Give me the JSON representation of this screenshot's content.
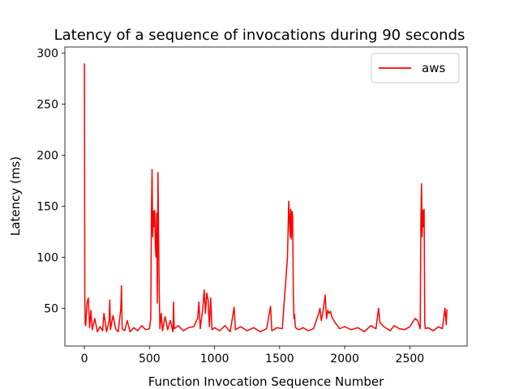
{
  "chart_data": {
    "type": "line",
    "title": "Latency of a sequence of invocations during 90 seconds",
    "xlabel": "Function Invocation Sequence Number",
    "ylabel": "Latency (ms)",
    "xlim": [
      -150,
      2940
    ],
    "ylim": [
      13,
      306
    ],
    "xticks": [
      0,
      500,
      1000,
      1500,
      2000,
      2500
    ],
    "yticks": [
      50,
      100,
      150,
      200,
      250,
      300
    ],
    "grid": false,
    "legend_position": "top-right",
    "color": "#ff0000",
    "series": [
      {
        "name": "aws",
        "x": [
          0,
          3,
          6,
          10,
          20,
          30,
          40,
          50,
          60,
          80,
          100,
          120,
          140,
          150,
          170,
          190,
          195,
          200,
          220,
          240,
          260,
          280,
          285,
          290,
          310,
          330,
          350,
          380,
          410,
          440,
          470,
          500,
          510,
          515,
          520,
          525,
          530,
          535,
          540,
          545,
          550,
          555,
          560,
          565,
          570,
          575,
          580,
          590,
          600,
          620,
          640,
          660,
          680,
          685,
          690,
          720,
          760,
          800,
          840,
          870,
          880,
          890,
          910,
          920,
          930,
          940,
          950,
          960,
          970,
          980,
          1000,
          1040,
          1080,
          1120,
          1150,
          1160,
          1200,
          1250,
          1300,
          1350,
          1400,
          1430,
          1440,
          1480,
          1520,
          1560,
          1570,
          1580,
          1585,
          1590,
          1595,
          1600,
          1605,
          1610,
          1615,
          1620,
          1630,
          1650,
          1680,
          1720,
          1760,
          1800,
          1810,
          1820,
          1835,
          1850,
          1860,
          1870,
          1880,
          1890,
          1900,
          1920,
          1960,
          2000,
          2050,
          2100,
          2150,
          2200,
          2240,
          2260,
          2270,
          2300,
          2350,
          2380,
          2420,
          2460,
          2500,
          2540,
          2560,
          2580,
          2585,
          2590,
          2595,
          2600,
          2605,
          2610,
          2615,
          2620,
          2640,
          2680,
          2720,
          2750,
          2770,
          2780,
          2785
        ],
        "y": [
          290,
          60,
          35,
          33,
          55,
          60,
          31,
          48,
          29,
          40,
          27,
          32,
          28,
          45,
          27,
          38,
          58,
          29,
          43,
          30,
          27,
          50,
          72,
          30,
          28,
          38,
          27,
          31,
          28,
          33,
          29,
          30,
          40,
          138,
          186,
          120,
          145,
          130,
          146,
          110,
          100,
          143,
          55,
          183,
          120,
          65,
          30,
          45,
          28,
          42,
          29,
          38,
          27,
          56,
          30,
          33,
          28,
          31,
          32,
          40,
          56,
          30,
          50,
          68,
          45,
          65,
          58,
          32,
          60,
          29,
          31,
          28,
          33,
          27,
          51,
          29,
          32,
          28,
          31,
          27,
          30,
          52,
          28,
          31,
          30,
          100,
          155,
          120,
          147,
          118,
          145,
          140,
          65,
          40,
          44,
          32,
          30,
          29,
          31,
          28,
          30,
          45,
          50,
          38,
          48,
          63,
          40,
          48,
          45,
          47,
          42,
          37,
          30,
          32,
          29,
          31,
          27,
          33,
          30,
          50,
          36,
          32,
          28,
          33,
          30,
          29,
          32,
          40,
          38,
          30,
          135,
          172,
          120,
          146,
          130,
          147,
          35,
          30,
          31,
          28,
          32,
          30,
          50,
          34,
          49
        ]
      }
    ]
  }
}
